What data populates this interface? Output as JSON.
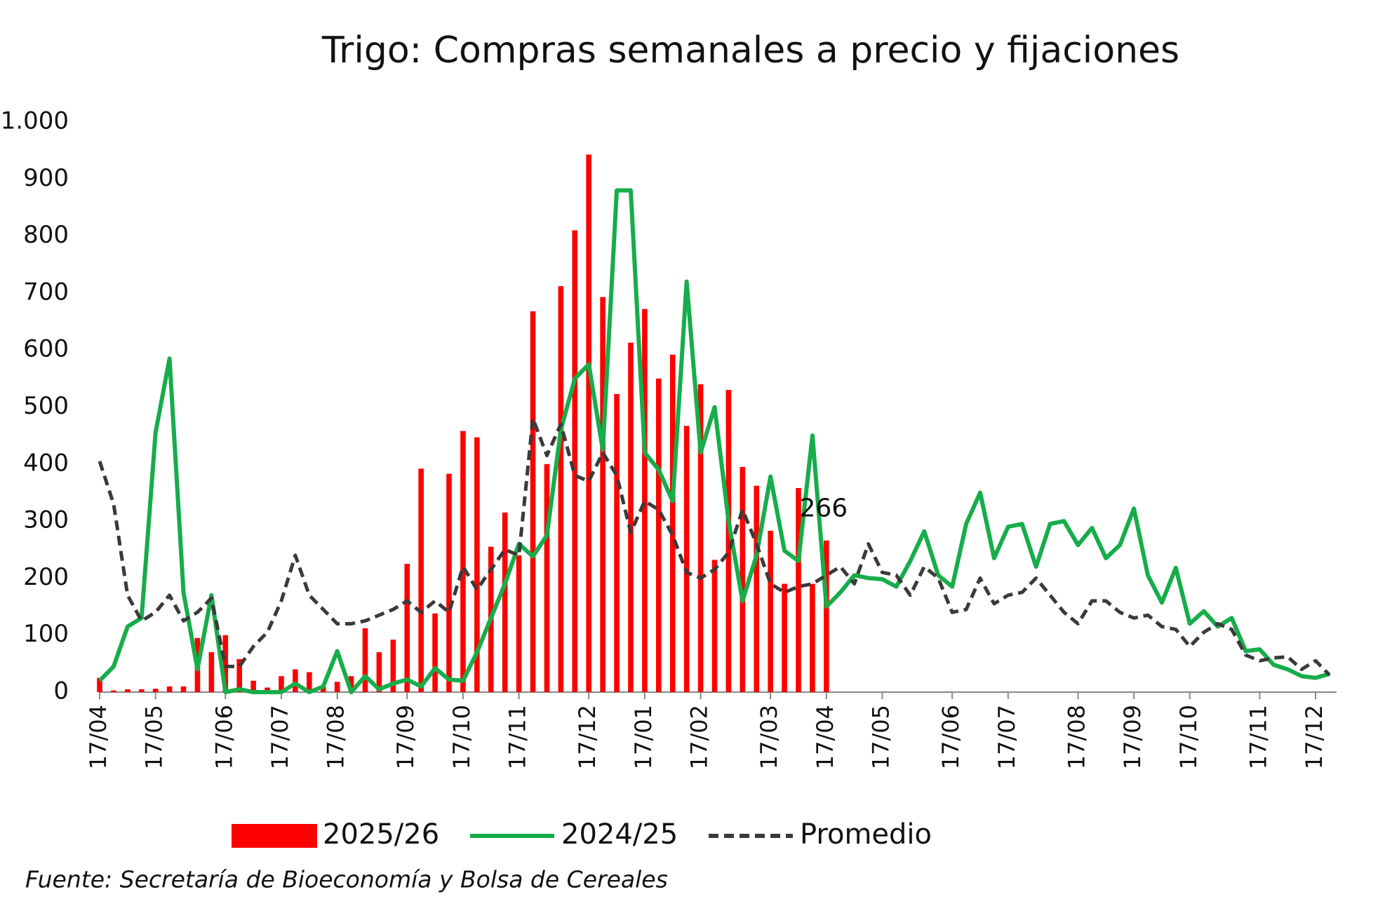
{
  "chart_data": {
    "type": "bar_line",
    "title": "Trigo: Compras semanales a precio y fijaciones",
    "source": "Fuente: Secretaría de Bioeconomía y Bolsa de Cereales",
    "annotation": "266",
    "categories": [
      "17/04",
      null,
      null,
      null,
      "17/05",
      null,
      null,
      null,
      null,
      "17/06",
      null,
      null,
      null,
      "17/07",
      null,
      null,
      null,
      "17/08",
      null,
      null,
      null,
      null,
      "17/09",
      null,
      null,
      null,
      "17/10",
      null,
      null,
      null,
      "17/11",
      null,
      null,
      null,
      null,
      "17/12",
      null,
      null,
      null,
      "17/01",
      null,
      null,
      null,
      "17/02",
      null,
      null,
      null,
      null,
      "17/03",
      null,
      null,
      null,
      "17/04",
      null,
      null,
      null,
      "17/05",
      null,
      null,
      null,
      null,
      "17/06",
      null,
      null,
      null,
      "17/07",
      null,
      null,
      null,
      null,
      "17/08",
      null,
      null,
      null,
      "17/09",
      null,
      null,
      null,
      "17/10",
      null,
      null,
      null,
      null,
      "17/11",
      null,
      null,
      null,
      "17/12",
      null
    ],
    "series": [
      {
        "name": "2025/26",
        "type": "bar",
        "color": "#ff0000",
        "values": [
          25,
          3,
          5,
          5,
          6,
          10,
          10,
          95,
          70,
          100,
          58,
          20,
          8,
          28,
          40,
          35,
          10,
          18,
          28,
          112,
          70,
          92,
          225,
          392,
          138,
          383,
          458,
          447,
          255,
          315,
          240,
          668,
          400,
          712,
          810,
          943,
          693,
          523,
          613,
          672,
          550,
          592,
          467,
          540,
          232,
          530,
          395,
          362,
          283,
          190,
          358,
          190,
          266,
          null,
          null,
          null,
          null,
          null,
          null,
          null,
          null,
          null,
          null,
          null,
          null,
          null,
          null,
          null,
          null,
          null,
          null,
          null,
          null,
          null,
          null,
          null,
          null,
          null,
          null,
          null,
          null,
          null,
          null,
          null,
          null,
          null,
          null,
          null,
          null
        ]
      },
      {
        "name": "2024/25",
        "type": "line",
        "color": "#16ad4a",
        "values": [
          20,
          45,
          115,
          130,
          455,
          585,
          175,
          40,
          170,
          0,
          5,
          0,
          0,
          0,
          15,
          0,
          10,
          72,
          0,
          28,
          5,
          15,
          22,
          10,
          42,
          22,
          20,
          70,
          130,
          190,
          260,
          238,
          275,
          460,
          550,
          575,
          425,
          880,
          880,
          420,
          390,
          335,
          720,
          420,
          500,
          300,
          160,
          240,
          378,
          248,
          230,
          450,
          150,
          175,
          205,
          200,
          198,
          185,
          230,
          282,
          205,
          185,
          295,
          350,
          235,
          290,
          295,
          220,
          295,
          300,
          258,
          288,
          235,
          258,
          322,
          205,
          157,
          218,
          120,
          142,
          115,
          130,
          72,
          75,
          48,
          40,
          28,
          25,
          32
        ]
      },
      {
        "name": "Promedio",
        "type": "dashed",
        "color": "#3a3a3a",
        "values": [
          405,
          330,
          170,
          125,
          140,
          170,
          125,
          140,
          165,
          45,
          45,
          80,
          105,
          160,
          240,
          170,
          145,
          120,
          120,
          125,
          135,
          145,
          160,
          140,
          160,
          140,
          220,
          180,
          215,
          250,
          240,
          480,
          415,
          470,
          380,
          370,
          420,
          380,
          280,
          335,
          320,
          275,
          210,
          200,
          215,
          245,
          320,
          260,
          190,
          175,
          185,
          190,
          205,
          220,
          190,
          260,
          210,
          205,
          170,
          220,
          200,
          140,
          145,
          200,
          155,
          170,
          175,
          200,
          170,
          140,
          120,
          160,
          160,
          140,
          130,
          135,
          115,
          110,
          80,
          105,
          120,
          110,
          65,
          55,
          60,
          62,
          40,
          55,
          30
        ]
      }
    ],
    "ylim": [
      0,
      1000
    ],
    "yticks": [
      0,
      100,
      200,
      300,
      400,
      500,
      600,
      700,
      800,
      900,
      {
        "value": 1000,
        "label": "1.000"
      }
    ],
    "grid": false
  }
}
